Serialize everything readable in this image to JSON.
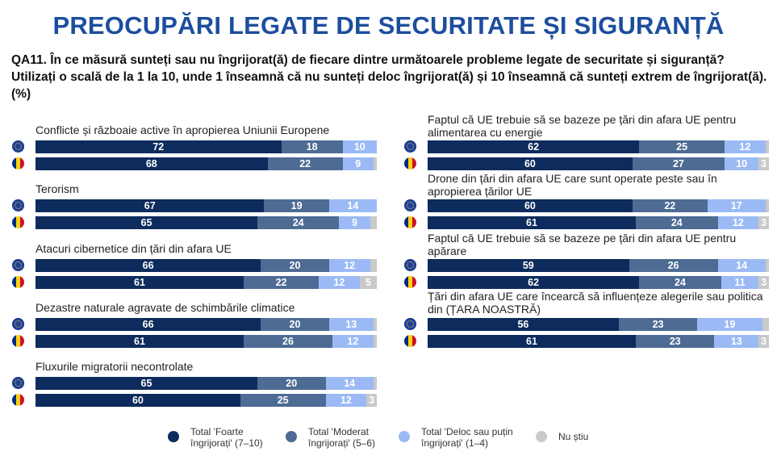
{
  "title": "PREOCUPĂRI LEGATE DE SECURITATE ȘI SIGURANȚĂ",
  "question": "QA11. În ce măsură sunteți sau nu îngrijorat(ă) de fiecare dintre următoarele probleme legate de securitate și siguranță? Utilizați o scală de la 1 la 10, unde 1 înseamnă că nu sunteți deloc îngrijorat(ă) și 10 înseamnă că sunteți extrem de îngrijorat(ă). (%)",
  "colors": {
    "very": "#0d2b5c",
    "moderate": "#4d6b93",
    "notmuch": "#9bbaf5",
    "dontknow": "#c9c9c9",
    "title": "#1d4e9e"
  },
  "legend": [
    "Total 'Foarte îngrijorați' (7–10)",
    "Total 'Moderat îngrijorați' (5–6)",
    "Total 'Deloc sau puțin îngrijorați' (1–4)",
    "Nu știu"
  ],
  "chart_data": {
    "type": "bar",
    "stacked": true,
    "orientation": "horizontal",
    "xlim": [
      0,
      100
    ],
    "series_names": [
      "Total 'Foarte îngrijorați' (7–10)",
      "Total 'Moderat îngrijorați' (5–6)",
      "Total 'Deloc sau puțin îngrijorați' (1–4)",
      "Nu știu"
    ],
    "row_icons": [
      "eu-flag",
      "romania-flag"
    ],
    "items": [
      {
        "label": "Conflicte și războaie active în apropierea Uniunii Europene",
        "eu": [
          72,
          18,
          10,
          0
        ],
        "ro": [
          68,
          22,
          9,
          1
        ]
      },
      {
        "label": "Terorism",
        "eu": [
          67,
          19,
          14,
          0
        ],
        "ro": [
          65,
          24,
          9,
          2
        ]
      },
      {
        "label": "Atacuri cibernetice din țări din afara UE",
        "eu": [
          66,
          20,
          12,
          2
        ],
        "ro": [
          61,
          22,
          12,
          5
        ]
      },
      {
        "label": "Dezastre naturale agravate de schimbările climatice",
        "eu": [
          66,
          20,
          13,
          1
        ],
        "ro": [
          61,
          26,
          12,
          1
        ]
      },
      {
        "label": "Fluxurile migratorii necontrolate",
        "eu": [
          65,
          20,
          14,
          1
        ],
        "ro": [
          60,
          25,
          12,
          3
        ]
      },
      {
        "label": "Faptul că UE trebuie să se bazeze pe țări din afara UE pentru alimentarea cu energie",
        "eu": [
          62,
          25,
          12,
          1
        ],
        "ro": [
          60,
          27,
          10,
          3
        ]
      },
      {
        "label": "Drone din țări din afara UE care sunt operate peste sau în apropierea țărilor UE",
        "eu": [
          60,
          22,
          17,
          1
        ],
        "ro": [
          61,
          24,
          12,
          3
        ]
      },
      {
        "label": "Faptul că UE trebuie să se bazeze pe țări din afara UE pentru apărare",
        "eu": [
          59,
          26,
          14,
          1
        ],
        "ro": [
          62,
          24,
          11,
          3
        ]
      },
      {
        "label": "Țări din afara UE care încearcă să influențeze alegerile sau politica din (ȚARA NOASTRĂ)",
        "eu": [
          56,
          23,
          19,
          2
        ],
        "ro": [
          61,
          23,
          13,
          3
        ]
      }
    ]
  }
}
